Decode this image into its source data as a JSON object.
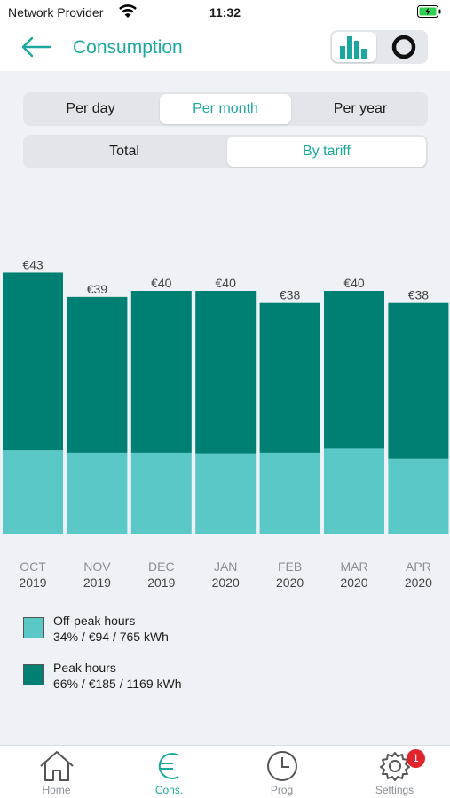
{
  "status_bar": {
    "carrier": "Network Provider",
    "time": "11:32"
  },
  "header": {
    "title": "Consumption",
    "back_icon": "arrow-left-icon",
    "view_icons": [
      "bar-chart-icon",
      "donut-chart-icon"
    ]
  },
  "period_tabs": {
    "options": [
      "Per day",
      "Per month",
      "Per year"
    ],
    "selected": "Per month"
  },
  "breakdown_tabs": {
    "options": [
      "Total",
      "By tariff"
    ],
    "selected": "By tariff"
  },
  "colors": {
    "accent": "#1aa89e",
    "peak": "#007f73",
    "off_peak": "#5ac8c6",
    "badge": "#e0242c"
  },
  "chart_data": {
    "type": "bar",
    "stacked": true,
    "categories": [
      "OCT 2019",
      "NOV 2019",
      "DEC 2019",
      "JAN 2020",
      "FEB 2020",
      "MAR 2020",
      "APR 2020"
    ],
    "cat_month": [
      "OCT",
      "NOV",
      "DEC",
      "JAN",
      "FEB",
      "MAR",
      "APR"
    ],
    "cat_year": [
      "2019",
      "2019",
      "2019",
      "2020",
      "2020",
      "2020",
      "2020"
    ],
    "totals": [
      43,
      39,
      40,
      40,
      38,
      40,
      38
    ],
    "total_labels": [
      "€43",
      "€39",
      "€40",
      "€40",
      "€38",
      "€40",
      "€38"
    ],
    "series": [
      {
        "name": "Off-peak hours",
        "values": [
          13.7,
          13.3,
          13.3,
          13.2,
          13.3,
          14.1,
          12.3
        ]
      },
      {
        "name": "Peak hours",
        "values": [
          29.3,
          25.7,
          26.7,
          26.8,
          24.7,
          25.9,
          25.7
        ]
      }
    ]
  },
  "legend": [
    {
      "name": "Off-peak hours",
      "detail": "34% / €94 / 765 kWh"
    },
    {
      "name": "Peak hours",
      "detail": "66% / €185 / 1169 kWh"
    }
  ],
  "tabbar": {
    "items": [
      {
        "label": "Home",
        "icon": "home-icon"
      },
      {
        "label": "Cons.",
        "icon": "euro-icon"
      },
      {
        "label": "Prog",
        "icon": "clock-icon"
      },
      {
        "label": "Settings",
        "icon": "gear-icon"
      }
    ],
    "active": "Cons.",
    "settings_badge": "1"
  }
}
